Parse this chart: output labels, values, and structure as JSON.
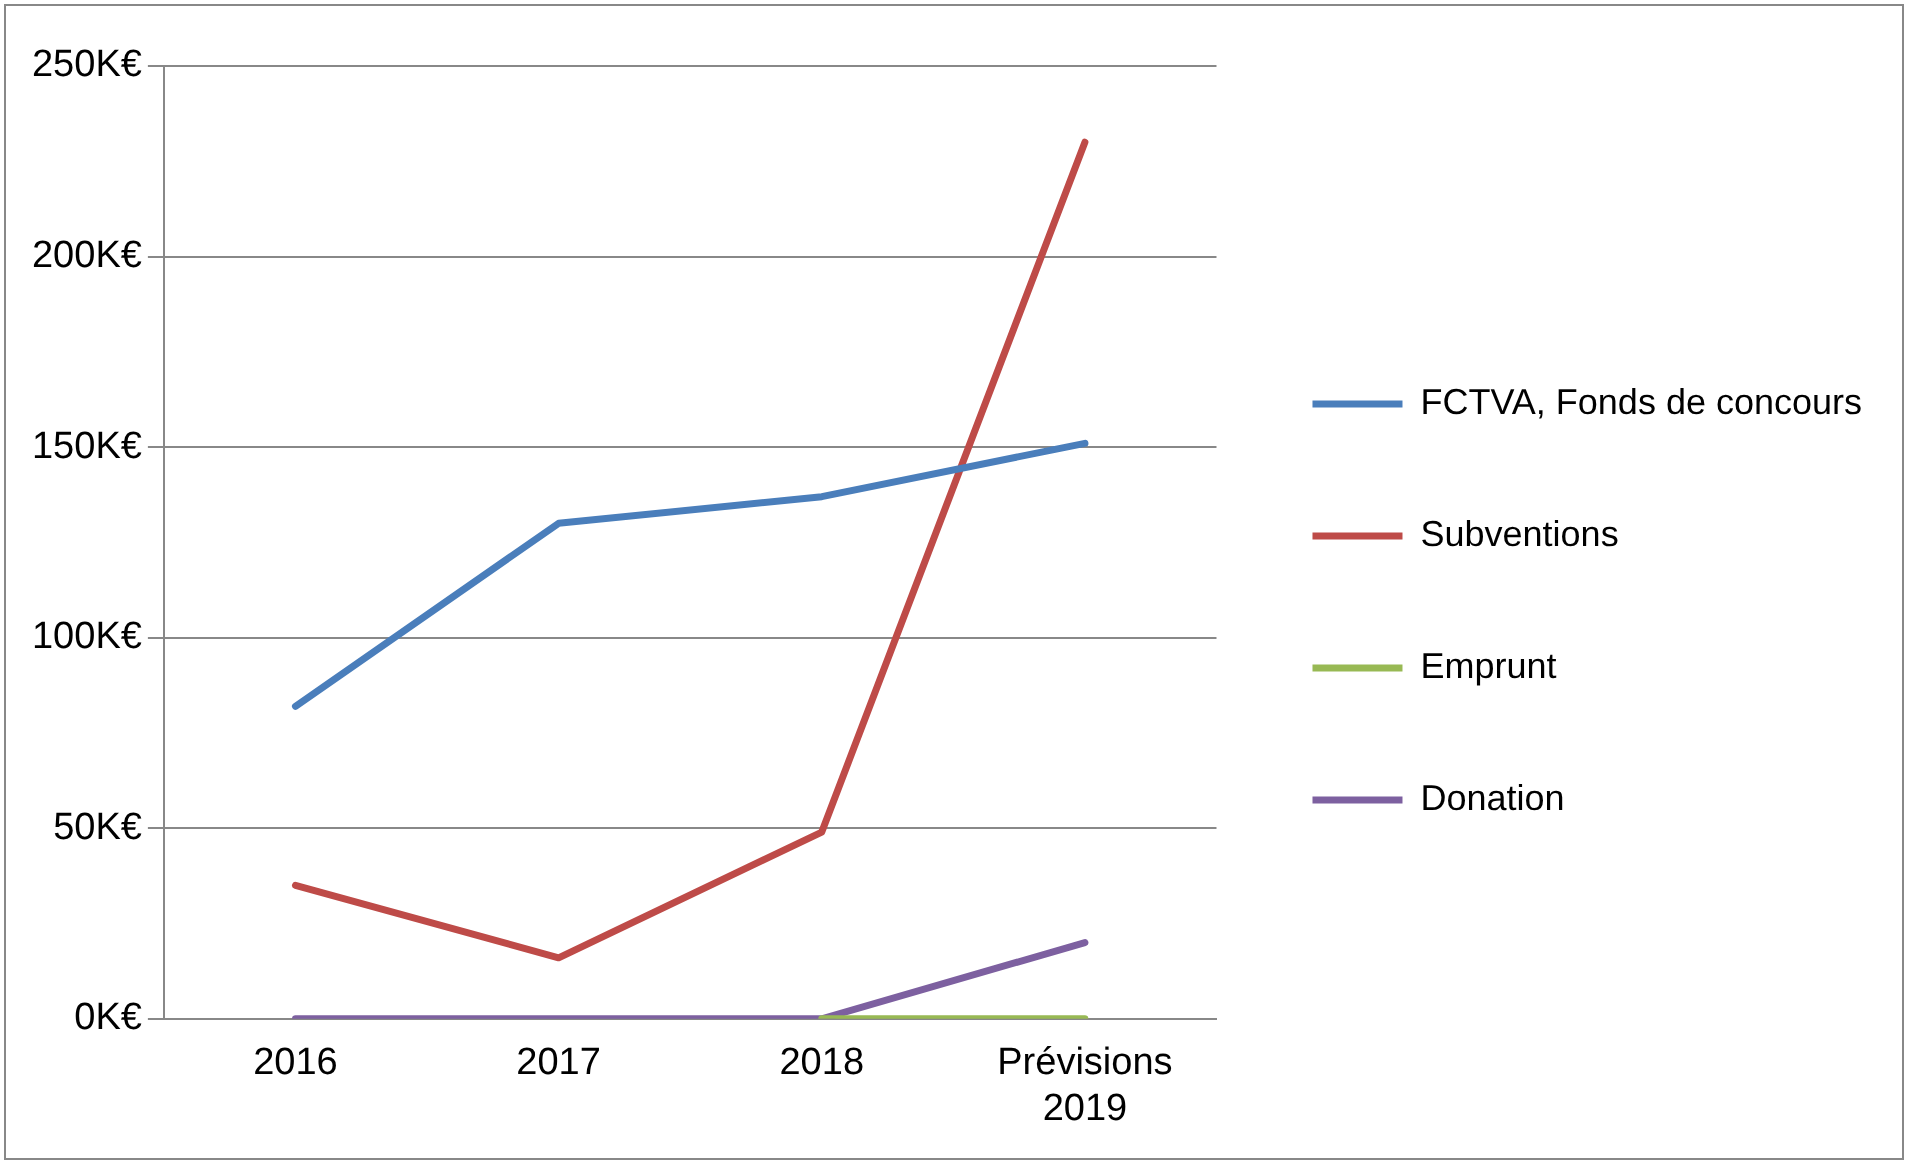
{
  "chart_data": {
    "type": "line",
    "categories": [
      "2016",
      "2017",
      "2018",
      "Prévisions 2019"
    ],
    "series": [
      {
        "name": "FCTVA, Fonds de concours",
        "color": "#4a7ebb",
        "values": [
          82,
          130,
          137,
          151
        ]
      },
      {
        "name": "Subventions",
        "color": "#be4b48",
        "values": [
          35,
          16,
          49,
          230
        ]
      },
      {
        "name": "Emprunt",
        "color": "#98b954",
        "values": [
          null,
          null,
          0,
          0
        ]
      },
      {
        "name": "Donation",
        "color": "#7d60a0",
        "values": [
          0,
          0,
          0,
          20
        ]
      }
    ],
    "ylim": [
      0,
      250
    ],
    "yticks": [
      {
        "value": 0,
        "label": "0K€"
      },
      {
        "value": 50,
        "label": "50K€"
      },
      {
        "value": 100,
        "label": "100K€"
      },
      {
        "value": 150,
        "label": "150K€"
      },
      {
        "value": 200,
        "label": "200K€"
      },
      {
        "value": 250,
        "label": "250K€"
      }
    ],
    "grid": "y",
    "legend": "right",
    "marker": "none",
    "line_style": "solid"
  }
}
